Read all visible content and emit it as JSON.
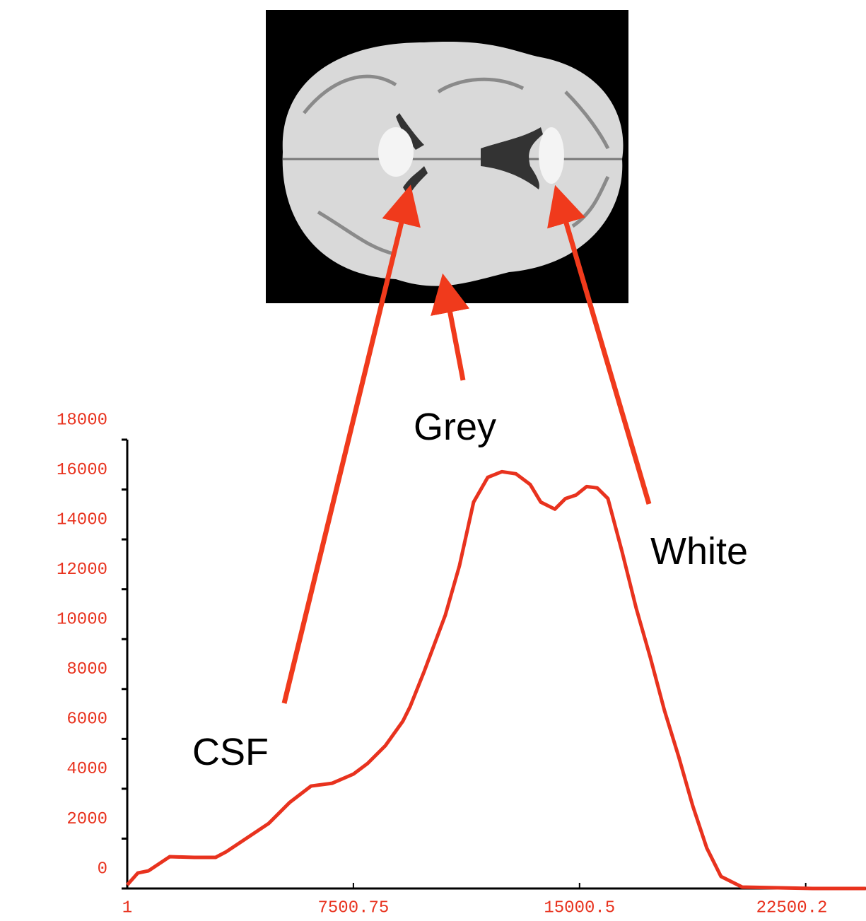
{
  "chart_data": {
    "type": "line",
    "annotations": [
      "CSF",
      "Grey",
      "White"
    ],
    "x": [
      1,
      353,
      704,
      1407,
      2228,
      2931,
      3283,
      3986,
      4689,
      5392,
      6095,
      6799,
      7502,
      7971,
      8557,
      9143,
      9377,
      9846,
      10549,
      11018,
      11487,
      11956,
      12425,
      12893,
      13362,
      13714,
      14182,
      14534,
      14886,
      15237,
      15589,
      15941,
      16409,
      16878,
      17347,
      17816,
      18285,
      18754,
      19222,
      19691,
      20394,
      21566,
      22738,
      24495
    ],
    "series": [
      {
        "color": "#e8321e",
        "values": [
          142,
          623,
          708,
          1275,
          1247,
          1247,
          1473,
          2040,
          2606,
          3456,
          4108,
          4221,
          4589,
          5014,
          5722,
          6714,
          7280,
          8697,
          10963,
          12946,
          15496,
          16488,
          16715,
          16630,
          16205,
          15496,
          15213,
          15638,
          15779,
          16119,
          16063,
          15638,
          13513,
          11246,
          9263,
          7139,
          5297,
          3314,
          1615,
          482,
          57,
          28,
          0,
          0
        ]
      }
    ],
    "xlim": [
      1,
      24500
    ],
    "xticks": [
      1,
      7500.75,
      15000.5,
      22500.2
    ],
    "ylim": [
      0,
      18000
    ],
    "yticks": [
      0,
      2000,
      4000,
      6000,
      8000,
      10000,
      12000,
      14000,
      16000,
      18000
    ],
    "grid": false
  }
}
